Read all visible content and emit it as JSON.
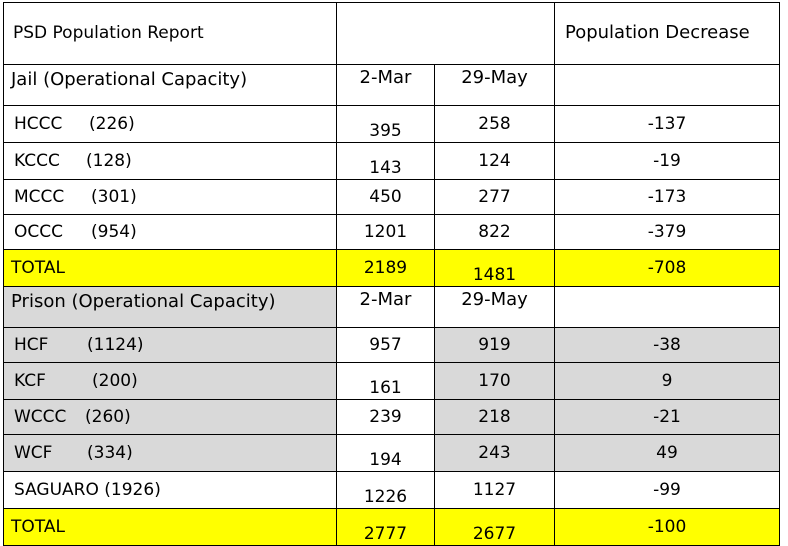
{
  "report_title": "PSD Population Report",
  "decrease_header": "Population Decrease",
  "jail": {
    "label": "Jail (Operational Capacity)",
    "date1": "2-Mar",
    "date2": "29-May",
    "rows": [
      {
        "name": "HCCC",
        "capacity": "(226)",
        "mar": "395",
        "may": "258",
        "decrease": "-137"
      },
      {
        "name": "KCCC",
        "capacity": "(128)",
        "mar": "143",
        "may": "124",
        "decrease": "-19"
      },
      {
        "name": "MCCC",
        "capacity": "(301)",
        "mar": "450",
        "may": "277",
        "decrease": "-173"
      },
      {
        "name": "OCCC",
        "capacity": "(954)",
        "mar": "1201",
        "may": "822",
        "decrease": "-379"
      }
    ],
    "total": {
      "label": "TOTAL",
      "mar": "2189",
      "may": "1481",
      "decrease": "-708"
    }
  },
  "prison": {
    "label": "Prison (Operational Capacity)",
    "date1": "2-Mar",
    "date2": "29-May",
    "rows": [
      {
        "name": "HCF",
        "capacity": "(1124)",
        "mar": "957",
        "may": "919",
        "decrease": "-38"
      },
      {
        "name": "KCF",
        "capacity": "(200)",
        "mar": "161",
        "may": "170",
        "decrease": "9"
      },
      {
        "name": "WCCC",
        "capacity": "(260)",
        "mar": "239",
        "may": "218",
        "decrease": "-21"
      },
      {
        "name": "WCF",
        "capacity": "(334)",
        "mar": "194",
        "may": "243",
        "decrease": "49"
      },
      {
        "name": "SAGUARO",
        "capacity": "(1926)",
        "mar": "1226",
        "may": "1127",
        "decrease": "-99"
      }
    ],
    "total": {
      "label": "TOTAL",
      "mar": "2777",
      "may": "2677",
      "decrease": "-100"
    }
  }
}
